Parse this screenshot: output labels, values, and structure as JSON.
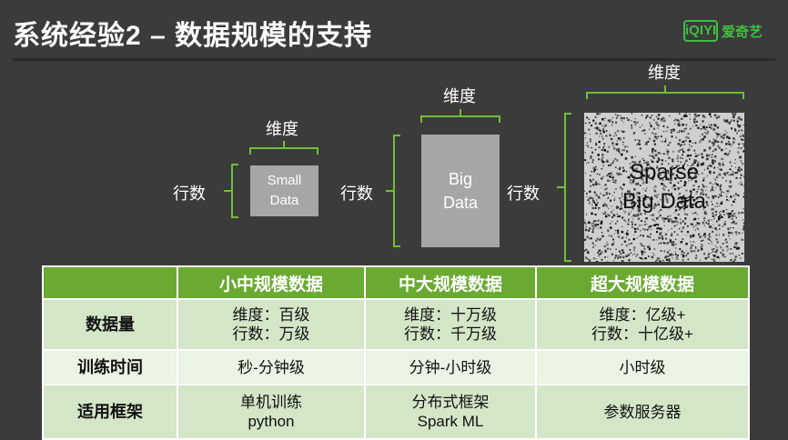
{
  "slide": {
    "title": "系统经验2 – 数据规模的支持",
    "logo": {
      "mark": "iQIYI",
      "text": "爱奇艺"
    }
  },
  "diagram": {
    "dim_label": "维度",
    "row_label": "行数",
    "small": {
      "line1": "Small",
      "line2": "Data"
    },
    "big": {
      "line1": "Big",
      "line2": "Data"
    },
    "sparse": {
      "line1": "Sparse",
      "line2": "Big Data"
    }
  },
  "colors": {
    "accent_green": "#6aaa32",
    "brace_green": "#6fbf3a",
    "box_gray": "#a6a6a6"
  },
  "table": {
    "columns": [
      "",
      "小中规模数据",
      "中大规模数据",
      "超大规模数据"
    ],
    "rows": [
      {
        "header": "数据量",
        "cells": [
          [
            "维度：百级",
            "行数：万级"
          ],
          [
            "维度：十万级",
            "行数：千万级"
          ],
          [
            "维度：亿级+",
            "行数：十亿级+"
          ]
        ]
      },
      {
        "header": "训练时间",
        "cells": [
          [
            "秒-分钟级"
          ],
          [
            "分钟-小时级"
          ],
          [
            "小时级"
          ]
        ]
      },
      {
        "header": "适用框架",
        "cells": [
          [
            "单机训练",
            "python"
          ],
          [
            "分布式框架",
            "Spark ML"
          ],
          [
            "参数服务器"
          ]
        ]
      }
    ]
  }
}
